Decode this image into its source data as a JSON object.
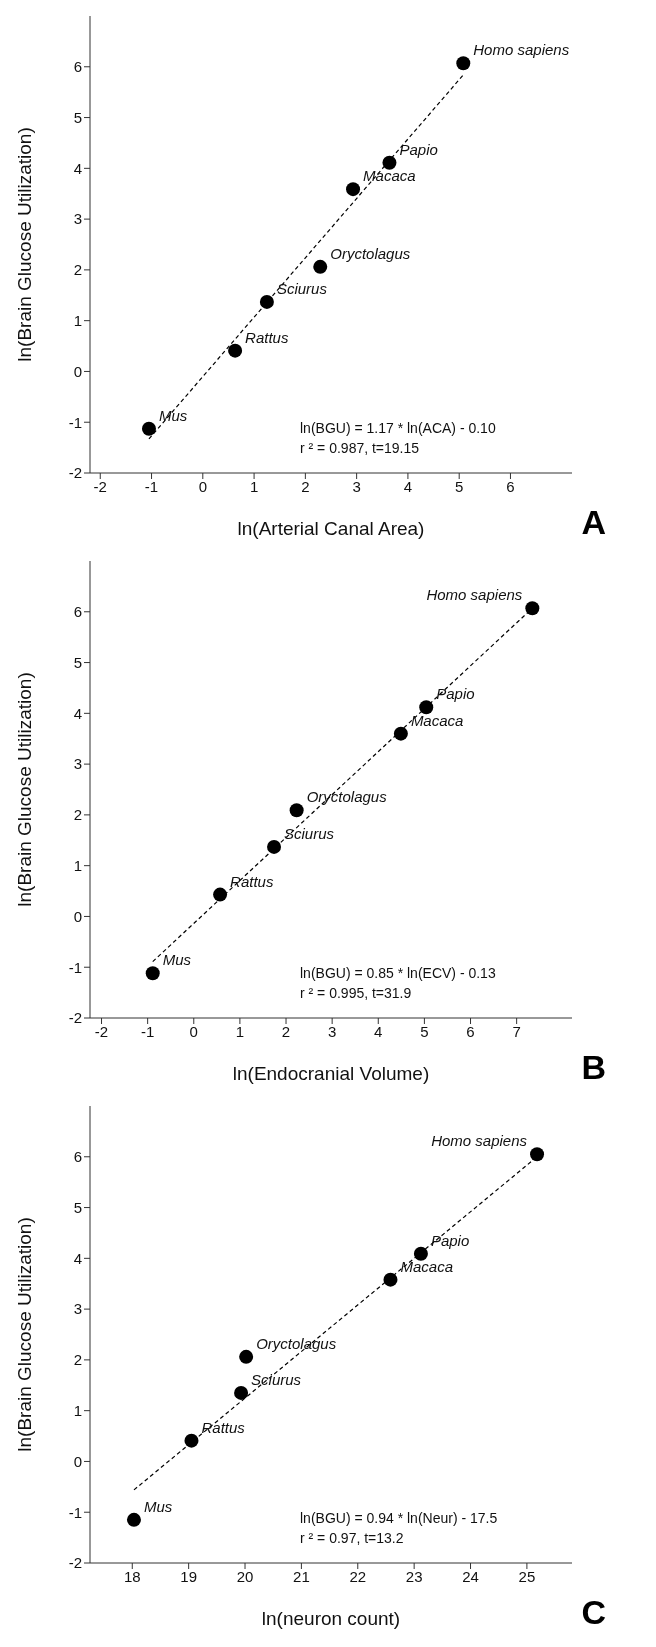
{
  "chart_data": [
    {
      "type": "scatter",
      "title": "A",
      "xlabel": "ln(Arterial Canal Area)",
      "ylabel": "ln(Brain Glucose Utilization)",
      "xlim": [
        -2.2,
        7.2
      ],
      "ylim": [
        -2,
        7
      ],
      "xticks": [
        -2,
        -1,
        0,
        1,
        2,
        3,
        4,
        5,
        6
      ],
      "yticks": [
        -2,
        -1,
        0,
        1,
        2,
        3,
        4,
        5,
        6
      ],
      "series": [
        {
          "color": "#000000",
          "marker": "circle",
          "x": [
            -1.05,
            0.63,
            1.25,
            2.29,
            2.93,
            3.64,
            5.08
          ],
          "values": [
            -1.13,
            0.41,
            1.37,
            2.06,
            3.59,
            4.11,
            6.07
          ]
        },
        {
          "type": "line",
          "color": "#000000",
          "marker": "none",
          "line_style": "dashed",
          "x": [
            -1.05,
            5.08
          ],
          "values": [
            -1.33,
            5.84
          ]
        }
      ],
      "annotations": [
        {
          "text": "Mus",
          "x": -1.05,
          "y": -1.13
        },
        {
          "text": "Rattus",
          "x": 0.63,
          "y": 0.41
        },
        {
          "text": "Sciurus",
          "x": 1.25,
          "y": 1.37
        },
        {
          "text": "Oryctolagus",
          "x": 2.29,
          "y": 2.06
        },
        {
          "text": "Macaca",
          "x": 2.93,
          "y": 3.59
        },
        {
          "text": "Papio",
          "x": 3.64,
          "y": 4.11
        },
        {
          "text": "Homo sapiens",
          "x": 5.08,
          "y": 6.07
        },
        "ln(BGU) = 1.17 * ln(ACA) - 0.10",
        "r ² = 0.987, t=19.15"
      ]
    },
    {
      "type": "scatter",
      "title": "B",
      "xlabel": "ln(Endocranial Volume)",
      "ylabel": "ln(Brain Glucose Utilization)",
      "xlim": [
        -2.25,
        8.2
      ],
      "ylim": [
        -2,
        7
      ],
      "xticks": [
        -2,
        -1,
        0,
        1,
        2,
        3,
        4,
        5,
        6,
        7
      ],
      "yticks": [
        -2,
        -1,
        0,
        1,
        2,
        3,
        4,
        5,
        6
      ],
      "series": [
        {
          "color": "#000000",
          "marker": "circle",
          "x": [
            -0.89,
            0.57,
            1.74,
            2.23,
            4.49,
            5.04,
            7.34
          ],
          "values": [
            -1.12,
            0.43,
            1.37,
            2.09,
            3.6,
            4.12,
            6.07
          ]
        },
        {
          "type": "line",
          "color": "#000000",
          "marker": "none",
          "line_style": "dashed",
          "x": [
            -0.89,
            7.34
          ],
          "values": [
            -0.89,
            6.07
          ]
        }
      ],
      "annotations": [
        {
          "text": "Mus",
          "x": -0.89,
          "y": -1.12
        },
        {
          "text": "Rattus",
          "x": 0.57,
          "y": 0.43
        },
        {
          "text": "Sciurus",
          "x": 1.74,
          "y": 1.37
        },
        {
          "text": "Oryctolagus",
          "x": 2.23,
          "y": 2.09
        },
        {
          "text": "Macaca",
          "x": 4.49,
          "y": 3.6
        },
        {
          "text": "Papio",
          "x": 5.04,
          "y": 4.12
        },
        {
          "text": "Homo sapiens",
          "x": 7.34,
          "y": 6.07
        },
        "ln(BGU) = 0.85 * ln(ECV) - 0.13",
        "r ² = 0.995, t=31.9"
      ]
    },
    {
      "type": "scatter",
      "title": "C",
      "xlabel": "ln(neuron count)",
      "ylabel": "ln(Brain Glucose Utilization)",
      "xlim": [
        17.25,
        25.8
      ],
      "ylim": [
        -2,
        7
      ],
      "xticks": [
        18,
        19,
        20,
        21,
        22,
        23,
        24,
        25
      ],
      "yticks": [
        -2,
        -1,
        0,
        1,
        2,
        3,
        4,
        5,
        6
      ],
      "series": [
        {
          "color": "#000000",
          "marker": "circle",
          "x": [
            18.03,
            19.05,
            19.93,
            20.02,
            22.58,
            23.12,
            25.18
          ],
          "values": [
            -1.15,
            0.41,
            1.35,
            2.06,
            3.58,
            4.09,
            6.05
          ]
        },
        {
          "type": "line",
          "color": "#000000",
          "marker": "none",
          "line_style": "dashed",
          "x": [
            18.03,
            25.18
          ],
          "values": [
            -0.56,
            6.0
          ]
        }
      ],
      "annotations": [
        {
          "text": "Mus",
          "x": 18.03,
          "y": -1.15
        },
        {
          "text": "Rattus",
          "x": 19.05,
          "y": 0.41
        },
        {
          "text": "Sciurus",
          "x": 19.93,
          "y": 1.35
        },
        {
          "text": "Oryctolagus",
          "x": 20.02,
          "y": 2.06
        },
        {
          "text": "Macaca",
          "x": 22.58,
          "y": 3.58
        },
        {
          "text": "Papio",
          "x": 23.12,
          "y": 4.09
        },
        {
          "text": "Homo sapiens",
          "x": 25.18,
          "y": 6.05
        },
        "ln(BGU) = 0.94 * ln(Neur) - 17.5",
        "r ² = 0.97, t=13.2"
      ]
    }
  ]
}
